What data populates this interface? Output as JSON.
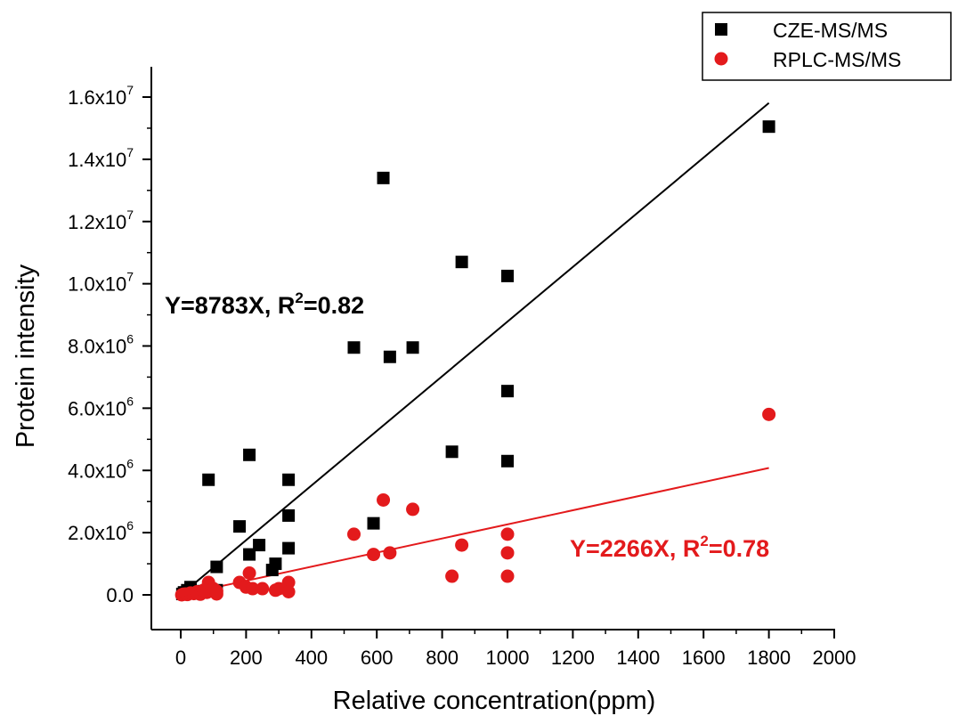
{
  "chart_data": {
    "type": "scatter",
    "title": "",
    "xlabel": "Relative concentration(ppm)",
    "ylabel": "Protein intensity",
    "xlim": [
      -80,
      2000
    ],
    "ylim": [
      -900000,
      17000000
    ],
    "x_ticks": [
      0,
      200,
      400,
      600,
      800,
      1000,
      1200,
      1400,
      1600,
      1800,
      2000
    ],
    "x_tick_labels": [
      "0",
      "200",
      "400",
      "600",
      "800",
      "1000",
      "1200",
      "1400",
      "1600",
      "1800",
      "2000"
    ],
    "y_ticks": [
      0,
      2000000,
      4000000,
      6000000,
      8000000,
      10000000,
      12000000,
      14000000,
      16000000
    ],
    "y_tick_labels": [
      {
        "mantissa": "0.0",
        "exp": ""
      },
      {
        "mantissa": "2.0x10",
        "exp": "6"
      },
      {
        "mantissa": "4.0x10",
        "exp": "6"
      },
      {
        "mantissa": "6.0x10",
        "exp": "6"
      },
      {
        "mantissa": "8.0x10",
        "exp": "6"
      },
      {
        "mantissa": "1.0x10",
        "exp": "7"
      },
      {
        "mantissa": "1.2x10",
        "exp": "7"
      },
      {
        "mantissa": "1.4x10",
        "exp": "7"
      },
      {
        "mantissa": "1.6x10",
        "exp": "7"
      }
    ],
    "grid": false,
    "legend_position": "top-right",
    "series": [
      {
        "name": "CZE-MS/MS",
        "marker": "square",
        "color": "#000000",
        "fit_slope": 8783,
        "fit_label": {
          "pre": "Y=8783X, R",
          "sup": "2",
          "post": "=0.82"
        },
        "points": [
          [
            5,
            30000
          ],
          [
            10,
            80000
          ],
          [
            20,
            150000
          ],
          [
            30,
            250000
          ],
          [
            40,
            120000
          ],
          [
            60,
            100000
          ],
          [
            85,
            3700000
          ],
          [
            110,
            900000
          ],
          [
            110,
            150000
          ],
          [
            180,
            2200000
          ],
          [
            210,
            4500000
          ],
          [
            210,
            1300000
          ],
          [
            240,
            1600000
          ],
          [
            280,
            800000
          ],
          [
            290,
            1000000
          ],
          [
            330,
            3700000
          ],
          [
            330,
            2550000
          ],
          [
            330,
            1500000
          ],
          [
            530,
            7950000
          ],
          [
            590,
            2300000
          ],
          [
            620,
            13400000
          ],
          [
            640,
            7650000
          ],
          [
            710,
            7950000
          ],
          [
            830,
            4600000
          ],
          [
            860,
            10700000
          ],
          [
            1000,
            10250000
          ],
          [
            1000,
            6550000
          ],
          [
            1000,
            4300000
          ],
          [
            1800,
            15050000
          ]
        ]
      },
      {
        "name": "RPLC-MS/MS",
        "marker": "circle",
        "color": "#e31a1c",
        "fit_slope": 2266,
        "fit_label": {
          "pre": "Y=2266X, R",
          "sup": "2",
          "post": "=0.78"
        },
        "points": [
          [
            3,
            0
          ],
          [
            8,
            20000
          ],
          [
            15,
            30000
          ],
          [
            20,
            10000
          ],
          [
            30,
            60000
          ],
          [
            40,
            40000
          ],
          [
            50,
            100000
          ],
          [
            60,
            20000
          ],
          [
            70,
            150000
          ],
          [
            80,
            80000
          ],
          [
            85,
            400000
          ],
          [
            100,
            200000
          ],
          [
            110,
            30000
          ],
          [
            110,
            120000
          ],
          [
            180,
            400000
          ],
          [
            200,
            250000
          ],
          [
            210,
            700000
          ],
          [
            220,
            200000
          ],
          [
            250,
            200000
          ],
          [
            290,
            150000
          ],
          [
            300,
            200000
          ],
          [
            330,
            400000
          ],
          [
            330,
            100000
          ],
          [
            530,
            1950000
          ],
          [
            590,
            1300000
          ],
          [
            620,
            3050000
          ],
          [
            640,
            1350000
          ],
          [
            710,
            2750000
          ],
          [
            830,
            600000
          ],
          [
            860,
            1600000
          ],
          [
            1000,
            1950000
          ],
          [
            1000,
            1350000
          ],
          [
            1000,
            600000
          ],
          [
            1800,
            5800000
          ]
        ]
      }
    ]
  }
}
